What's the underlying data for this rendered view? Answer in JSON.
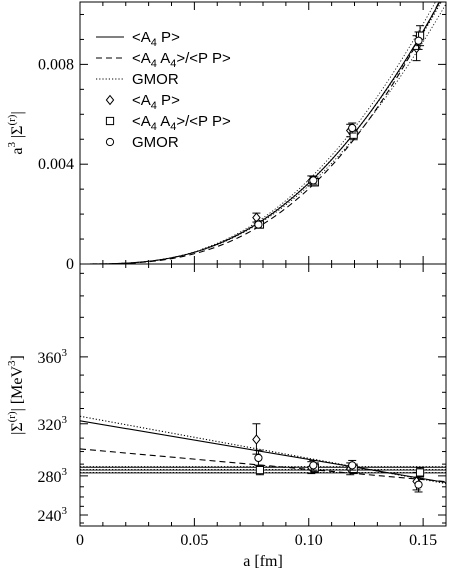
{
  "chart_data": [
    {
      "type": "line",
      "panel": "top",
      "xlabel": "a [fm]",
      "ylabel": "a³ |Σ^(r)|",
      "ylabel_parts": [
        "a",
        "3",
        " |Σ",
        "(r)",
        "|"
      ],
      "xlim": [
        0,
        0.16
      ],
      "ylim": [
        0,
        0.0105
      ],
      "y_ticks": [
        0,
        0.004,
        0.008
      ],
      "y_tick_labels": [
        "0",
        "0.004",
        "0.008"
      ],
      "legend_position": "top-left",
      "legend": [
        {
          "parts": [
            "<A",
            "4",
            " P>"
          ],
          "style": "solid"
        },
        {
          "parts": [
            "<A",
            "4",
            " A",
            "4",
            ">/<P P>"
          ],
          "style": "dashed"
        },
        {
          "parts": [
            "GMOR"
          ],
          "style": "dotted"
        },
        {
          "parts": [
            "<A",
            "4",
            " P>"
          ],
          "marker": "diamond"
        },
        {
          "parts": [
            "<A",
            "4",
            " A",
            "4",
            ">/<P P>"
          ],
          "marker": "square"
        },
        {
          "parts": [
            "GMOR"
          ],
          "marker": "circle"
        }
      ],
      "series": [
        {
          "name": "<A4 P>",
          "marker": "diamond",
          "points": [
            [
              0.078,
              0.00186,
              0.00018
            ],
            [
              0.102,
              0.00333,
              0.0002
            ],
            [
              0.119,
              0.00535,
              0.00025
            ],
            [
              0.148,
              0.00865,
              0.0005
            ]
          ]
        },
        {
          "name": "<A4 A4>/<P P>",
          "marker": "square",
          "points": [
            [
              0.078,
              0.00158,
              0.00012
            ],
            [
              0.102,
              0.00328,
              0.00015
            ],
            [
              0.119,
              0.00518,
              0.0002
            ],
            [
              0.148,
              0.00915,
              0.0004
            ]
          ]
        },
        {
          "name": "GMOR",
          "marker": "circle",
          "points": [
            [
              0.078,
              0.00158,
              0.00014
            ],
            [
              0.102,
              0.00335,
              0.00015
            ],
            [
              0.119,
              0.00545,
              0.0002
            ],
            [
              0.148,
              0.00895,
              0.00035
            ]
          ]
        }
      ],
      "fit_curves": [
        {
          "style": "solid",
          "c0": 322,
          "c1": -300
        },
        {
          "style": "dashed",
          "c0": 302,
          "c1": -170
        },
        {
          "style": "dotted",
          "c0": 325,
          "c1": -325
        }
      ]
    },
    {
      "type": "line",
      "panel": "bottom",
      "xlabel": "a [fm]",
      "ylabel": "|Σ^(r)| [MeV³]",
      "ylabel_parts": [
        "|Σ",
        "(r)",
        "| [MeV",
        "3",
        "]"
      ],
      "xlim": [
        0,
        0.16
      ],
      "y_scale": "cubic",
      "ylim": [
        226,
        404
      ],
      "x_ticks": [
        0,
        0.05,
        0.1,
        0.15
      ],
      "x_tick_labels": [
        "0",
        "0.05",
        "0.10",
        "0.15"
      ],
      "y_ticks": [
        240,
        280,
        320,
        360
      ],
      "y_tick_labels": [
        {
          "base": "240",
          "exp": "3"
        },
        {
          "base": "280",
          "exp": "3"
        },
        {
          "base": "320",
          "exp": "3"
        },
        {
          "base": "360",
          "exp": "3"
        }
      ],
      "series": [
        {
          "name": "<A4 P>",
          "marker": "diamond",
          "points": [
            [
              0.078,
              309,
              11
            ],
            [
              0.102,
              287,
              5
            ],
            [
              0.119,
              286,
              5
            ],
            [
              0.148,
              275,
              8
            ]
          ]
        },
        {
          "name": "<A4 A4>/<P P>",
          "marker": "square",
          "points": [
            [
              0.078,
              285,
              4
            ],
            [
              0.102,
              287,
              4
            ],
            [
              0.119,
              286,
              4
            ],
            [
              0.148,
              283,
              4
            ]
          ]
        },
        {
          "name": "GMOR",
          "marker": "circle",
          "points": [
            [
              0.078,
              295,
              6
            ],
            [
              0.102,
              289,
              4
            ],
            [
              0.119,
              289,
              4
            ],
            [
              0.148,
              272,
              7
            ]
          ]
        }
      ],
      "fit_lines": [
        {
          "style": "solid",
          "c0": 322,
          "c1": -300
        },
        {
          "style": "dashed",
          "c0": 302,
          "c1": -170
        },
        {
          "style": "dotted",
          "c0": 325,
          "c1": -325
        }
      ],
      "constant_bands": [
        {
          "style": "solid",
          "value": 285,
          "lo": 282.6,
          "hi": 287.4
        },
        {
          "style": "dotted",
          "value": 285.5,
          "lo": 283,
          "hi": 288
        }
      ]
    }
  ]
}
